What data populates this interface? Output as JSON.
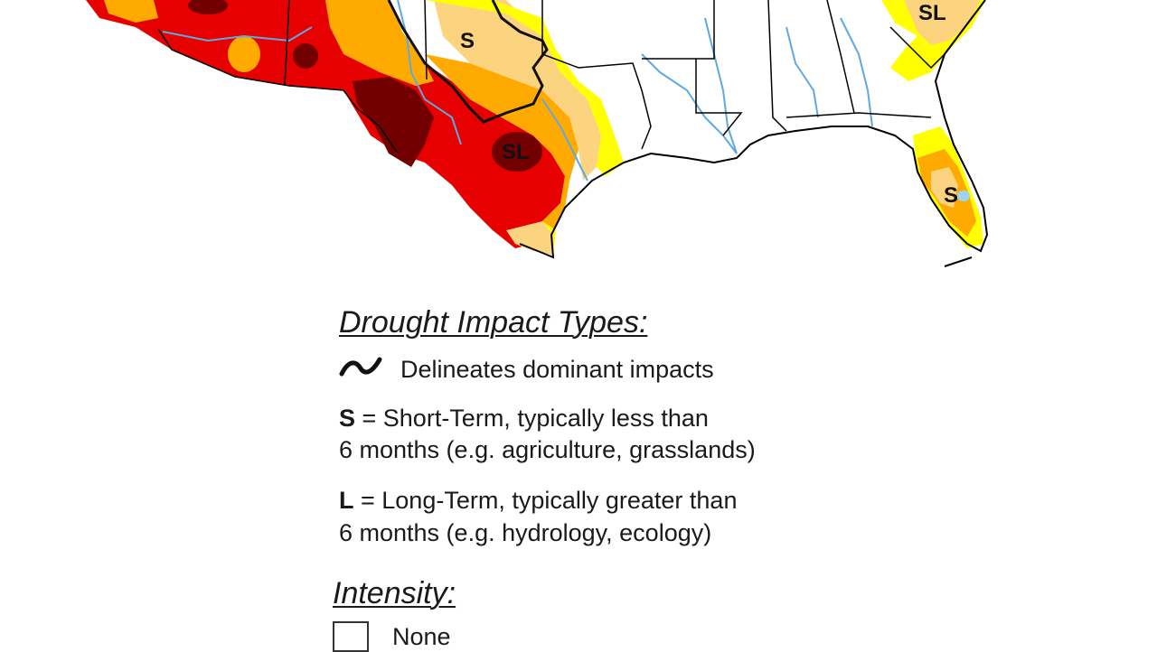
{
  "map": {
    "labels": [
      "S",
      "SL",
      "SL",
      "S"
    ],
    "colors": {
      "none": "#ffffff",
      "d0": "#ffff00",
      "d1": "#fcd37f",
      "d2": "#ffaa00",
      "d3": "#e60000",
      "d4": "#730000",
      "water": "#5ea9e0",
      "border": "#000000"
    }
  },
  "legend": {
    "impact_title": "Drought Impact Types:",
    "delineates": "Delineates dominant impacts",
    "short_prefix": "S",
    "short_line1": " = Short-Term, typically less than",
    "short_line2": "6 months (e.g. agriculture, grasslands)",
    "long_prefix": "L",
    "long_line1": " = Long-Term, typically greater than",
    "long_line2": "6 months (e.g. hydrology, ecology)",
    "intensity_title": "Intensity:",
    "intensity_items": [
      "None"
    ]
  }
}
